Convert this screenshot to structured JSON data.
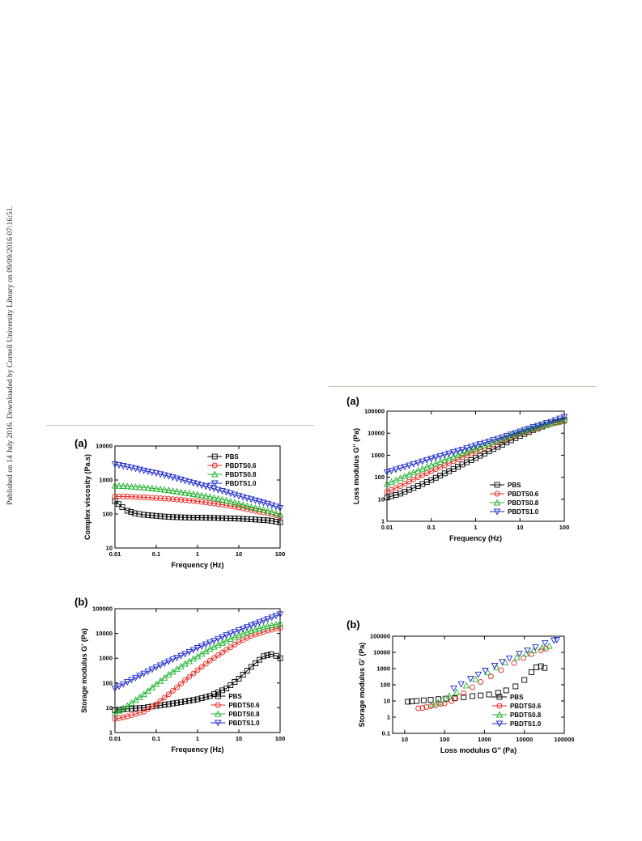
{
  "side_note": "Published on 14 July 2016. Downloaded by Cornell University Library on 09/09/2016 07:16:51.",
  "colors": {
    "PBS": "#000000",
    "PBDTS0.6": "#e8231c",
    "PBDTS0.8": "#1db22b",
    "PBDTS1.0": "#1a27c8"
  },
  "chart_data": [
    {
      "id": "left-a",
      "panel_label": "(a)",
      "type": "line",
      "xlabel": "Frequency (Hz)",
      "ylabel": "Complex viscosity (Pa.s)",
      "xscale": "log",
      "yscale": "log",
      "xlim": [
        0.01,
        100
      ],
      "ylim": [
        10,
        10000
      ],
      "xticks": [
        "0.01",
        "0.1",
        "1",
        "10",
        "100"
      ],
      "yticks": [
        "10",
        "100",
        "1000",
        "10000"
      ],
      "legend_position": "top-right",
      "series": [
        {
          "name": "PBS",
          "marker": "square",
          "x": [
            0.01,
            0.015,
            0.02,
            0.03,
            0.05,
            0.1,
            0.2,
            0.5,
            1,
            2,
            5,
            10,
            20,
            50,
            100
          ],
          "y": [
            240,
            160,
            125,
            105,
            95,
            88,
            82,
            79,
            78,
            77,
            75,
            73,
            70,
            65,
            57
          ]
        },
        {
          "name": "PBDTS0.6",
          "marker": "circle",
          "x": [
            0.01,
            0.02,
            0.05,
            0.1,
            0.2,
            0.5,
            1,
            2,
            5,
            10,
            20,
            50,
            100
          ],
          "y": [
            330,
            325,
            310,
            295,
            280,
            255,
            235,
            210,
            180,
            155,
            130,
            105,
            85
          ]
        },
        {
          "name": "PBDTS0.8",
          "marker": "triangle-up",
          "x": [
            0.01,
            0.02,
            0.05,
            0.1,
            0.2,
            0.5,
            1,
            2,
            5,
            10,
            20,
            50,
            100
          ],
          "y": [
            680,
            650,
            600,
            550,
            500,
            420,
            370,
            320,
            250,
            200,
            160,
            125,
            95
          ]
        },
        {
          "name": "PBDTS1.0",
          "marker": "triangle-down",
          "x": [
            0.01,
            0.02,
            0.05,
            0.1,
            0.2,
            0.5,
            1,
            2,
            5,
            10,
            20,
            50,
            100
          ],
          "y": [
            2900,
            2450,
            1900,
            1580,
            1300,
            950,
            760,
            600,
            440,
            340,
            270,
            200,
            150
          ]
        }
      ]
    },
    {
      "id": "left-b",
      "panel_label": "(b)",
      "type": "line",
      "xlabel": "Frequency (Hz)",
      "ylabel": "Storage modulus G' (Pa)",
      "xscale": "log",
      "yscale": "log",
      "xlim": [
        0.01,
        100
      ],
      "ylim": [
        1,
        100000
      ],
      "xticks": [
        "0.01",
        "0.1",
        "1",
        "10",
        "100"
      ],
      "yticks": [
        "1",
        "10",
        "100",
        "1000",
        "10000",
        "100000"
      ],
      "legend_position": "bottom-right",
      "series": [
        {
          "name": "PBS",
          "marker": "square",
          "x": [
            0.01,
            0.02,
            0.05,
            0.1,
            0.2,
            0.5,
            1,
            2,
            5,
            10,
            20,
            40,
            60,
            80,
            100
          ],
          "y": [
            8,
            9,
            10,
            12,
            14,
            18,
            22,
            30,
            60,
            150,
            450,
            1200,
            1450,
            1250,
            1000
          ]
        },
        {
          "name": "PBDTS0.6",
          "marker": "circle",
          "x": [
            0.01,
            0.02,
            0.05,
            0.1,
            0.2,
            0.5,
            1,
            2,
            5,
            10,
            20,
            50,
            100
          ],
          "y": [
            3.5,
            4.5,
            7,
            14,
            35,
            130,
            330,
            800,
            2200,
            4500,
            8000,
            13000,
            17000
          ]
        },
        {
          "name": "PBDTS0.8",
          "marker": "triangle-up",
          "x": [
            0.01,
            0.02,
            0.05,
            0.1,
            0.2,
            0.5,
            1,
            2,
            5,
            10,
            20,
            50,
            100
          ],
          "y": [
            6,
            12,
            35,
            90,
            220,
            600,
            1200,
            2400,
            5000,
            8500,
            13000,
            20000,
            25000
          ]
        },
        {
          "name": "PBDTS1.0",
          "marker": "triangle-down",
          "x": [
            0.01,
            0.02,
            0.05,
            0.1,
            0.2,
            0.5,
            1,
            2,
            5,
            10,
            20,
            50,
            100
          ],
          "y": [
            60,
            110,
            240,
            430,
            750,
            1500,
            2600,
            4300,
            8500,
            13500,
            21000,
            38000,
            60000
          ]
        }
      ]
    },
    {
      "id": "right-a",
      "panel_label": "(a)",
      "type": "line",
      "xlabel": "Frequency (Hz)",
      "ylabel": "Loss modulus G'' (Pa)",
      "xscale": "log",
      "yscale": "log",
      "xlim": [
        0.01,
        100
      ],
      "ylim": [
        1,
        100000
      ],
      "xticks": [
        "0.01",
        "0.1",
        "1",
        "10",
        "100"
      ],
      "yticks": [
        "1",
        "10",
        "100",
        "1000",
        "10000",
        "100000"
      ],
      "legend_position": "bottom-right",
      "series": [
        {
          "name": "PBS",
          "marker": "square",
          "x": [
            0.01,
            0.02,
            0.05,
            0.1,
            0.2,
            0.5,
            1,
            2,
            5,
            10,
            20,
            50,
            100
          ],
          "y": [
            12,
            18,
            40,
            75,
            150,
            380,
            750,
            1500,
            3800,
            7500,
            14000,
            28000,
            40000
          ]
        },
        {
          "name": "PBDTS0.6",
          "marker": "circle",
          "x": [
            0.01,
            0.02,
            0.05,
            0.1,
            0.2,
            0.5,
            1,
            2,
            5,
            10,
            20,
            50,
            100
          ],
          "y": [
            22,
            40,
            100,
            190,
            350,
            800,
            1450,
            2600,
            5500,
            9500,
            15000,
            26000,
            35000
          ]
        },
        {
          "name": "PBDTS0.8",
          "marker": "triangle-up",
          "x": [
            0.01,
            0.02,
            0.05,
            0.1,
            0.2,
            0.5,
            1,
            2,
            5,
            10,
            20,
            50,
            100
          ],
          "y": [
            50,
            90,
            200,
            350,
            600,
            1200,
            2000,
            3300,
            6500,
            11000,
            17000,
            28000,
            42000
          ]
        },
        {
          "name": "PBDTS1.0",
          "marker": "triangle-down",
          "x": [
            0.01,
            0.02,
            0.05,
            0.1,
            0.2,
            0.5,
            1,
            2,
            5,
            10,
            20,
            50,
            100
          ],
          "y": [
            170,
            260,
            450,
            700,
            1050,
            1800,
            2800,
            4200,
            7500,
            12000,
            19000,
            33000,
            55000
          ]
        }
      ]
    },
    {
      "id": "right-b",
      "panel_label": "(b)",
      "type": "scatter",
      "xlabel": "Loss modulus G'' (Pa)",
      "ylabel": "Storage modulus G' (Pa)",
      "xscale": "log",
      "yscale": "log",
      "xlim": [
        5,
        100000
      ],
      "ylim": [
        0.1,
        100000
      ],
      "xticks": [
        "10",
        "100",
        "1000",
        "10000",
        "100000"
      ],
      "yticks": [
        "0.1",
        "1",
        "10",
        "100",
        "1000",
        "10000",
        "100000"
      ],
      "legend_position": "bottom-right",
      "series": [
        {
          "name": "PBS",
          "marker": "square",
          "x": [
            12,
            15,
            20,
            30,
            45,
            70,
            110,
            180,
            300,
            500,
            800,
            1300,
            2200,
            3500,
            6000,
            10000,
            15000,
            20000,
            26000,
            32000
          ],
          "y": [
            9,
            9.5,
            10,
            11,
            12,
            13,
            14,
            15,
            17,
            20,
            22,
            25,
            32,
            45,
            80,
            200,
            600,
            1200,
            1400,
            1100
          ]
        },
        {
          "name": "PBDTS0.6",
          "marker": "circle",
          "x": [
            22,
            28,
            35,
            45,
            60,
            80,
            100,
            150,
            190,
            300,
            500,
            800,
            1450,
            2600,
            5500,
            9500,
            15000,
            26000,
            35000
          ],
          "y": [
            3.5,
            3.7,
            4.2,
            4.8,
            5.5,
            6.5,
            7,
            10,
            14,
            30,
            70,
            150,
            330,
            800,
            2200,
            4500,
            8000,
            13000,
            17000
          ]
        },
        {
          "name": "PBDTS0.8",
          "marker": "triangle-up",
          "x": [
            50,
            70,
            90,
            130,
            200,
            350,
            600,
            1200,
            2000,
            3300,
            6500,
            11000,
            17000,
            28000,
            42000
          ],
          "y": [
            6,
            8,
            12,
            20,
            35,
            90,
            220,
            600,
            1200,
            2400,
            5000,
            8500,
            13000,
            20000,
            25000
          ]
        },
        {
          "name": "PBDTS1.0",
          "marker": "triangle-down",
          "x": [
            170,
            260,
            450,
            700,
            1050,
            1800,
            2800,
            4200,
            7500,
            12000,
            19000,
            33000,
            55000,
            65000
          ],
          "y": [
            60,
            110,
            240,
            430,
            750,
            1500,
            2600,
            4300,
            8500,
            13500,
            21000,
            38000,
            55000,
            60000
          ]
        }
      ]
    }
  ]
}
